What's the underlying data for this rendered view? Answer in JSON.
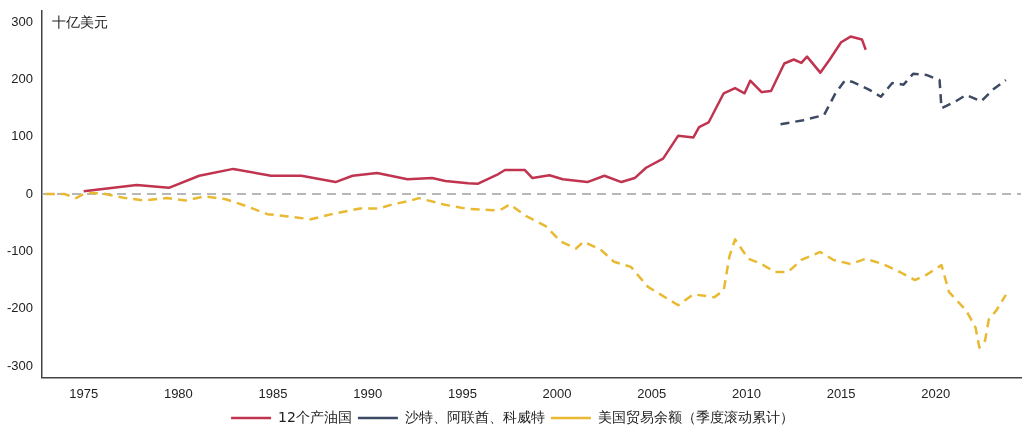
{
  "chart_data": {
    "type": "line",
    "ylabel": "十亿美元",
    "xlim": [
      1972.8,
      2024.5
    ],
    "xticks": [
      1975,
      1980,
      1985,
      1990,
      1995,
      2000,
      2005,
      2010,
      2015,
      2020
    ],
    "ylim": [
      -320,
      320
    ],
    "yticks": [
      -300,
      -200,
      -100,
      0,
      100,
      200,
      300
    ],
    "legend": "bottom",
    "marker": "none",
    "ref_lines": [
      {
        "axis": "y",
        "value": 0,
        "color": "#a0a0a0",
        "line_style": "dashed"
      }
    ],
    "series": [
      {
        "name": "12个产油国",
        "color": "#c0344f",
        "line_style": "solid",
        "x": [
          1975.0,
          1977.8,
          1979.5,
          1981.1,
          1982.9,
          1984.9,
          1986.5,
          1988.3,
          1989.2,
          1990.5,
          1992.1,
          1993.4,
          1994.1,
          1995.3,
          1995.8,
          1996.9,
          1997.25,
          1998.3,
          1998.7,
          1999.6,
          2000.3,
          2001.6,
          2002.5,
          2003.4,
          2004.1,
          2004.7,
          2005.6,
          2006.4,
          2007.2,
          2007.5,
          2008.0,
          2008.8,
          2009.4,
          2009.9,
          2010.2,
          2010.8,
          2011.3,
          2012.0,
          2012.5,
          2012.9,
          2013.2,
          2013.9,
          2014.4,
          2015.0,
          2015.5,
          2016.1,
          2016.3
        ],
        "values": [
          5,
          16,
          11,
          32,
          44,
          32,
          32,
          21,
          32,
          37,
          26,
          28,
          23,
          19,
          18,
          35,
          42,
          42,
          28,
          33,
          26,
          21,
          32,
          21,
          28,
          46,
          62,
          102,
          99,
          117,
          125,
          176,
          185,
          176,
          198,
          178,
          180,
          228,
          235,
          229,
          240,
          212,
          235,
          265,
          275,
          270,
          252
        ]
      },
      {
        "name": "沙特、阿联酋、科威特",
        "color": "#3d4a63",
        "line_style": "dashed",
        "x": [
          2011.8,
          2013.0,
          2014.1,
          2014.7,
          2015.2,
          2015.6,
          2016.5,
          2017.1,
          2017.7,
          2018.3,
          2018.8,
          2019.5,
          2020.2,
          2020.3,
          2021.0,
          2021.6,
          2022.4,
          2023.0,
          2023.7
        ],
        "values": [
          122,
          129,
          138,
          176,
          198,
          196,
          182,
          170,
          194,
          191,
          210,
          208,
          199,
          150,
          161,
          173,
          162,
          182,
          199
        ]
      },
      {
        "name": "美国贸易余额（季度滚动累计）",
        "color": "#e8b931",
        "line_style": "dashed",
        "x": [
          1973.0,
          1974.0,
          1974.6,
          1975.1,
          1976.0,
          1977.2,
          1978.2,
          1979.4,
          1980.4,
          1981.4,
          1982.5,
          1983.6,
          1984.7,
          1985.8,
          1987.0,
          1988.1,
          1989.6,
          1990.6,
          1991.3,
          1992.2,
          1992.7,
          1994.0,
          1995.3,
          1996.6,
          1997.1,
          1997.5,
          1998.4,
          1999.4,
          2000.2,
          2001.0,
          2001.4,
          2002.3,
          2003.0,
          2003.9,
          2004.8,
          2005.7,
          2006.4,
          2007.2,
          2008.3,
          2008.8,
          2009.1,
          2009.4,
          2010.1,
          2010.8,
          2011.5,
          2012.2,
          2012.9,
          2013.9,
          2014.6,
          2015.5,
          2016.3,
          2017.2,
          2018.1,
          2018.9,
          2019.5,
          2020.3,
          2020.7,
          2021.6,
          2022.1,
          2022.3,
          2022.6,
          2022.8,
          2023.2,
          2023.7
        ],
        "values": [
          0,
          0,
          -7,
          2,
          1,
          -7,
          -11,
          -7,
          -11,
          -4,
          -9,
          -21,
          -35,
          -39,
          -44,
          -35,
          -25,
          -25,
          -18,
          -12,
          -7,
          -18,
          -26,
          -28,
          -26,
          -18,
          -39,
          -56,
          -83,
          -95,
          -83,
          -97,
          -118,
          -127,
          -162,
          -180,
          -194,
          -175,
          -180,
          -168,
          -109,
          -79,
          -113,
          -122,
          -136,
          -136,
          -115,
          -101,
          -115,
          -122,
          -113,
          -122,
          -136,
          -150,
          -141,
          -124,
          -171,
          -203,
          -233,
          -268,
          -256,
          -219,
          -203,
          -176
        ]
      }
    ]
  }
}
